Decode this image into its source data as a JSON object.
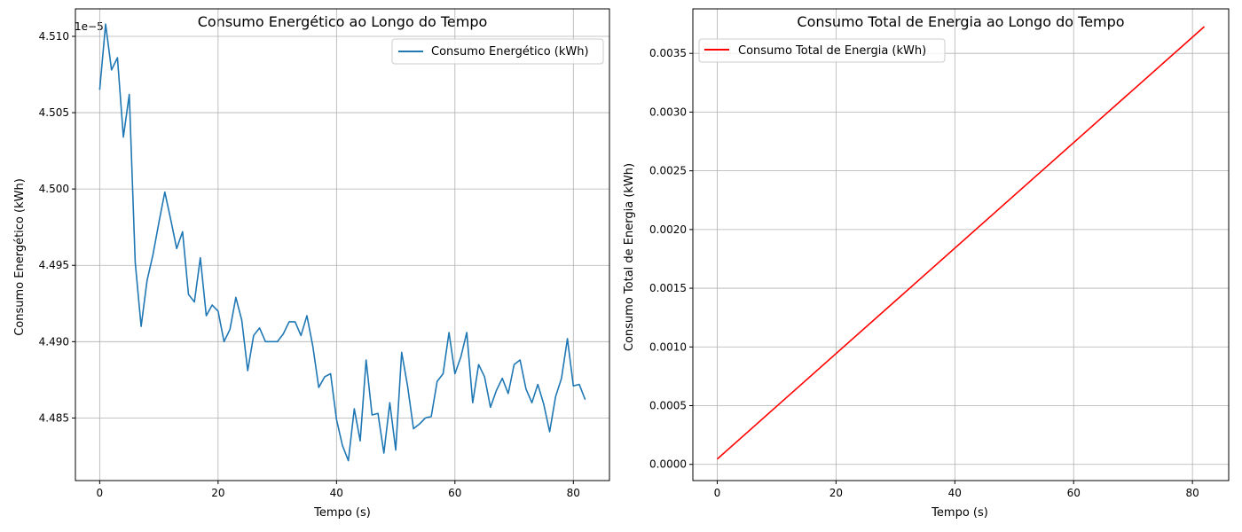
{
  "chart_data": [
    {
      "type": "line",
      "title": "Consumo Energético ao Longo do Tempo",
      "xlabel": "Tempo (s)",
      "ylabel": "Consumo Energético (kWh)",
      "offset_text": "1e−5",
      "xlim": [
        -4.1,
        86.1
      ],
      "ylim": [
        4.4809,
        4.5118
      ],
      "xticks": [
        0,
        20,
        40,
        60,
        80
      ],
      "xtick_labels": [
        "0",
        "20",
        "40",
        "60",
        "80"
      ],
      "yticks": [
        4.485,
        4.49,
        4.495,
        4.5,
        4.505,
        4.51
      ],
      "ytick_labels": [
        "4.485",
        "4.490",
        "4.495",
        "4.500",
        "4.505",
        "4.510"
      ],
      "grid": true,
      "legend_position": "top-right",
      "series": [
        {
          "name": "Consumo Energético (kWh)",
          "color": "#1f77b4",
          "x": [
            0,
            1,
            2,
            3,
            4,
            5,
            6,
            7,
            8,
            9,
            10,
            11,
            12,
            13,
            14,
            15,
            16,
            17,
            18,
            19,
            20,
            21,
            22,
            23,
            24,
            25,
            26,
            27,
            28,
            29,
            30,
            31,
            32,
            33,
            34,
            35,
            36,
            37,
            38,
            39,
            40,
            41,
            42,
            43,
            44,
            45,
            46,
            47,
            48,
            49,
            50,
            51,
            52,
            53,
            54,
            55,
            56,
            57,
            58,
            59,
            60,
            61,
            62,
            63,
            64,
            65,
            66,
            67,
            68,
            69,
            70,
            71,
            72,
            73,
            74,
            75,
            76,
            77,
            78,
            79,
            80,
            81,
            82
          ],
          "values": [
            4.5065,
            4.5108,
            4.5078,
            4.5086,
            4.5034,
            4.5062,
            4.4952,
            4.491,
            4.494,
            4.4957,
            4.4978,
            4.4998,
            4.498,
            4.4961,
            4.4972,
            4.4931,
            4.4926,
            4.4955,
            4.4917,
            4.4924,
            4.492,
            4.49,
            4.4908,
            4.4929,
            4.4914,
            4.4881,
            4.4904,
            4.4909,
            4.49,
            4.49,
            4.49,
            4.4905,
            4.4913,
            4.4913,
            4.4904,
            4.4917,
            4.4897,
            4.487,
            4.4877,
            4.4879,
            4.4849,
            4.4832,
            4.4822,
            4.4856,
            4.4835,
            4.4888,
            4.4852,
            4.4853,
            4.4827,
            4.486,
            4.4829,
            4.4893,
            4.4871,
            4.4843,
            4.4846,
            4.485,
            4.4851,
            4.4874,
            4.4879,
            4.4906,
            4.4879,
            4.489,
            4.4906,
            4.486,
            4.4885,
            4.4877,
            4.4857,
            4.4868,
            4.4876,
            4.4866,
            4.4885,
            4.4888,
            4.4869,
            4.486,
            4.4872,
            4.4859,
            4.4841,
            4.4864,
            4.4876,
            4.4902,
            4.4871,
            4.4872,
            4.4862
          ]
        }
      ]
    },
    {
      "type": "line",
      "title": "Consumo Total de Energia ao Longo do Tempo",
      "xlabel": "Tempo (s)",
      "ylabel": "Consumo Total de Energia (kWh)",
      "xlim": [
        -4.1,
        86.1
      ],
      "ylim": [
        -0.000138,
        0.003879
      ],
      "xticks": [
        0,
        20,
        40,
        60,
        80
      ],
      "xtick_labels": [
        "0",
        "20",
        "40",
        "60",
        "80"
      ],
      "yticks": [
        0,
        0.0005,
        0.001,
        0.0015,
        0.002,
        0.0025,
        0.003,
        0.0035
      ],
      "ytick_labels": [
        "0.0000",
        "0.0005",
        "0.0010",
        "0.0015",
        "0.0020",
        "0.0025",
        "0.0030",
        "0.0035"
      ],
      "grid": true,
      "legend_position": "top-left",
      "series": [
        {
          "name": "Consumo Total de Energia (kWh)",
          "color": "#ff0000",
          "x": [
            0,
            82
          ],
          "values": [
            4.51e-05,
            0.003728
          ]
        }
      ]
    }
  ]
}
